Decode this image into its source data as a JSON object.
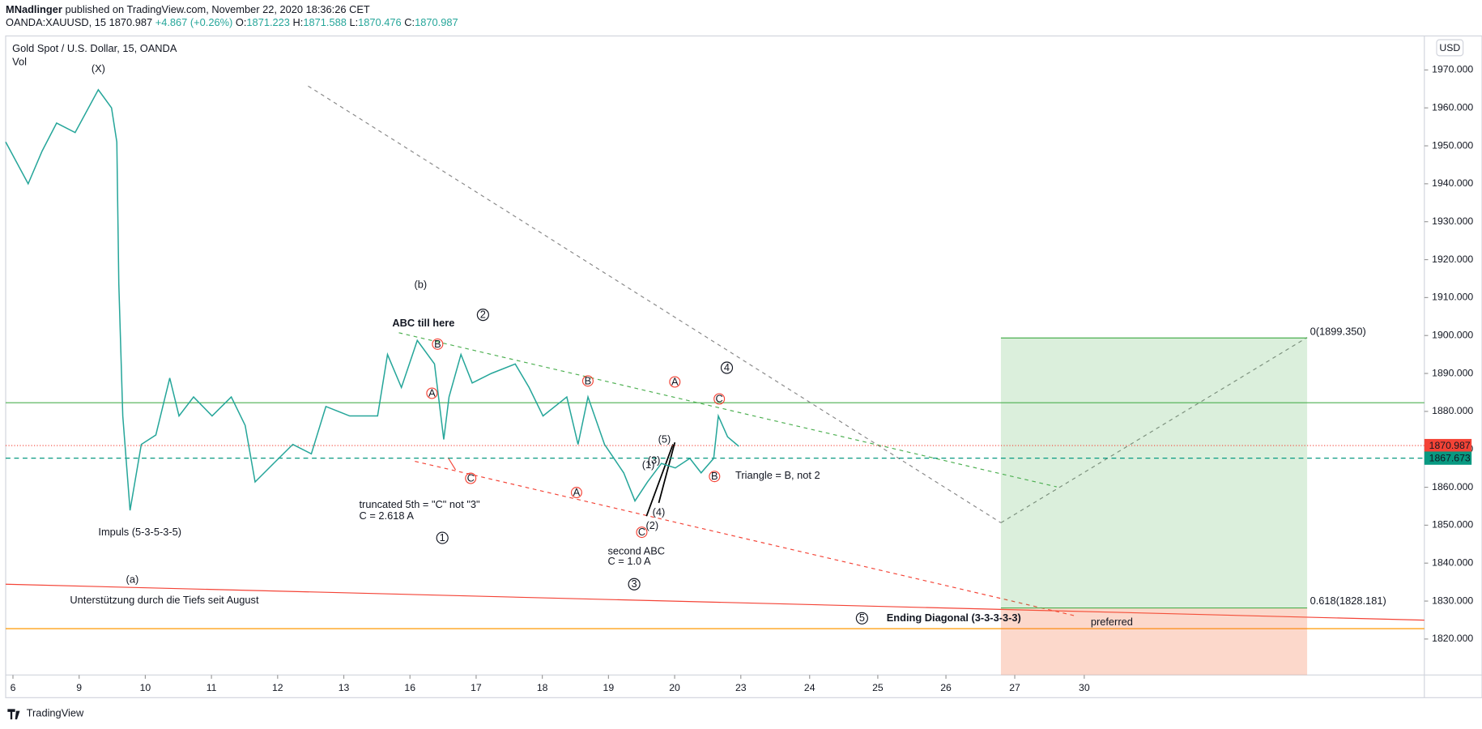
{
  "header": {
    "publisher": "MNadlinger",
    "published": "published on TradingView.com, November 22, 2020 18:36:26 CET",
    "symbol": "OANDA:XAUUSD, 15",
    "change": "+4.867 (+0.26%)",
    "ohlc_labels": [
      "O:",
      "H:",
      "L:",
      "C:"
    ],
    "ohlc": [
      1871.223,
      1871.588,
      1870.476,
      1870.987
    ]
  },
  "footer": "TradingView",
  "currency_button": "USD",
  "chart_data": {
    "type": "line",
    "title": "Gold Spot / U.S. Dollar, 15, OANDA",
    "subtitle": "Vol",
    "color": "#26a69a",
    "x": [
      -0.11,
      0.23,
      0.44,
      0.66,
      0.94,
      1.29,
      1.49,
      1.57,
      1.6,
      1.66,
      1.77,
      1.94,
      2.16,
      2.37,
      2.51,
      2.73,
      3.01,
      3.3,
      3.51,
      3.66,
      3.94,
      4.23,
      4.51,
      4.73,
      5.09,
      5.51,
      5.66,
      5.87,
      6.11,
      6.37,
      6.51,
      6.59,
      6.77,
      6.94,
      7.23,
      7.59,
      7.8,
      8.01,
      8.37,
      8.54,
      8.69,
      8.94,
      9.23,
      9.4,
      9.59,
      9.8,
      10.01,
      10.23,
      10.4,
      10.59,
      10.66,
      10.8,
      10.97
    ],
    "values": [
      1951,
      1940,
      1948.6,
      1956,
      1953.5,
      1964.8,
      1960,
      1951,
      1913.7,
      1878.8,
      1853.9,
      1871.3,
      1873.8,
      1888.8,
      1878.8,
      1883.8,
      1878.8,
      1883.8,
      1876.3,
      1861.4,
      1866.3,
      1871.3,
      1868.8,
      1881.3,
      1878.8,
      1878.8,
      1895,
      1886.3,
      1898.7,
      1892.5,
      1872.6,
      1883.8,
      1895,
      1887.5,
      1890,
      1892.5,
      1886.3,
      1878.8,
      1883.8,
      1871.3,
      1883.8,
      1871.3,
      1863.8,
      1856.4,
      1861.4,
      1866.3,
      1865.1,
      1867.6,
      1863.8,
      1867.6,
      1878.8,
      1873.3,
      1870.8
    ],
    "xlim": [
      -0.11,
      21.33
    ],
    "xticks": [
      {
        "value": 0,
        "label": "6"
      },
      {
        "value": 1,
        "label": "9"
      },
      {
        "value": 2,
        "label": "10"
      },
      {
        "value": 3,
        "label": "11"
      },
      {
        "value": 4,
        "label": "12"
      },
      {
        "value": 5,
        "label": "13"
      },
      {
        "value": 6,
        "label": "16"
      },
      {
        "value": 7,
        "label": "17"
      },
      {
        "value": 8,
        "label": "18"
      },
      {
        "value": 9,
        "label": "19"
      },
      {
        "value": 10,
        "label": "20"
      },
      {
        "value": 11,
        "label": "23"
      },
      {
        "value": 12.04,
        "label": "24"
      },
      {
        "value": 13.07,
        "label": "25"
      },
      {
        "value": 14.1,
        "label": "26"
      },
      {
        "value": 15.14,
        "label": "27"
      },
      {
        "value": 16.19,
        "label": "30"
      }
    ],
    "ylim": [
      1810.52,
      1978.97
    ],
    "yticks": [
      {
        "value": 1820,
        "label": "1820.000"
      },
      {
        "value": 1830,
        "label": "1830.000"
      },
      {
        "value": 1840,
        "label": "1840.000"
      },
      {
        "value": 1850,
        "label": "1850.000"
      },
      {
        "value": 1860,
        "label": "1860.000"
      },
      {
        "value": 1870,
        "label": "1870.000"
      },
      {
        "value": 1880,
        "label": "1880.000"
      },
      {
        "value": 1890,
        "label": "1890.000"
      },
      {
        "value": 1900,
        "label": "1900.000"
      },
      {
        "value": 1910,
        "label": "1910.000"
      },
      {
        "value": 1920,
        "label": "1920.000"
      },
      {
        "value": 1930,
        "label": "1930.000"
      },
      {
        "value": 1940,
        "label": "1940.000"
      },
      {
        "value": 1950,
        "label": "1950.000"
      },
      {
        "value": 1960,
        "label": "1960.000"
      },
      {
        "value": 1970,
        "label": "1970.000"
      }
    ],
    "last_price": 1870.987,
    "level": 1867.673,
    "position": {
      "target": 1899.35,
      "target_label": "0(1899.350)",
      "stop": 1828.181,
      "stop_label": "0.618(1828.181)"
    },
    "annotations": [
      "(X)",
      "(b)",
      "ABC till here",
      "Impuls (5-3-5-3-5)",
      "(a)",
      "Unterstützung durch die Tiefs seit August",
      "truncated 5th = \"C\" not \"3\"",
      "C = 2.618 A",
      "second ABC",
      "C = 1.0 A",
      "Triangle = B, not 2",
      "Ending Diagonal (3-3-3-3-3)",
      "preferred",
      "1",
      "2",
      "3",
      "4",
      "5",
      "A",
      "B",
      "C",
      "A",
      "B",
      "C",
      "A",
      "B",
      "C",
      "(1)",
      "(2)",
      "(3)",
      "(4)",
      "(5)"
    ]
  }
}
